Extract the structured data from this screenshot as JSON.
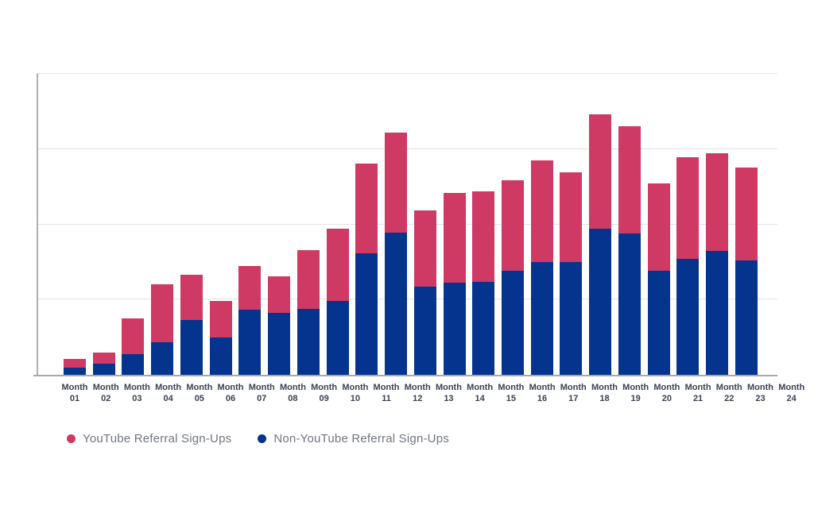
{
  "chart_data": {
    "type": "bar",
    "stacked": true,
    "title": "",
    "categories": [
      "Month 01",
      "Month 02",
      "Month 03",
      "Month 04",
      "Month 05",
      "Month 06",
      "Month 07",
      "Month 08",
      "Month 09",
      "Month 10",
      "Month 11",
      "Month 12",
      "Month 13",
      "Month 14",
      "Month 15",
      "Month 16",
      "Month 17",
      "Month 18",
      "Month 19",
      "Month 20",
      "Month 21",
      "Month 22",
      "Month 23",
      "Month 24"
    ],
    "series": [
      {
        "name": "YouTube Referral Sign-Ups",
        "color": "#ce3a63",
        "stack_position": "top",
        "values": [
          11,
          15,
          48,
          77,
          60,
          48,
          58,
          49,
          78,
          96,
          119,
          133,
          102,
          120,
          121,
          121,
          135,
          119,
          152,
          142,
          116,
          135,
          130,
          124
        ]
      },
      {
        "name": "Non-YouTube Referral Sign-Ups",
        "color": "#04348e",
        "stack_position": "bottom",
        "values": [
          10,
          15,
          27,
          43,
          73,
          50,
          87,
          82,
          88,
          98,
          162,
          189,
          117,
          122,
          123,
          138,
          150,
          150,
          194,
          188,
          138,
          154,
          165,
          152
        ]
      }
    ],
    "ylim": [
      0,
      400
    ],
    "gridlines": [
      100,
      200,
      300
    ],
    "y_axis_labels_visible": false,
    "grid": true,
    "legend_position": "bottom-left"
  },
  "x_axis": {
    "label_prefix": "Month",
    "numbers": [
      "01",
      "02",
      "03",
      "04",
      "05",
      "06",
      "07",
      "08",
      "09",
      "10",
      "11",
      "12",
      "13",
      "14",
      "15",
      "16",
      "17",
      "18",
      "19",
      "20",
      "21",
      "22",
      "23",
      "24"
    ]
  },
  "colors": {
    "youtube_pink": "#ce3a63",
    "non_youtube_blue": "#04348e",
    "gridline_gray": "#e3e4e6",
    "axis_gray": "#a6aaaf",
    "tick_label": "#3a4150",
    "legend_text": "#71767e"
  }
}
